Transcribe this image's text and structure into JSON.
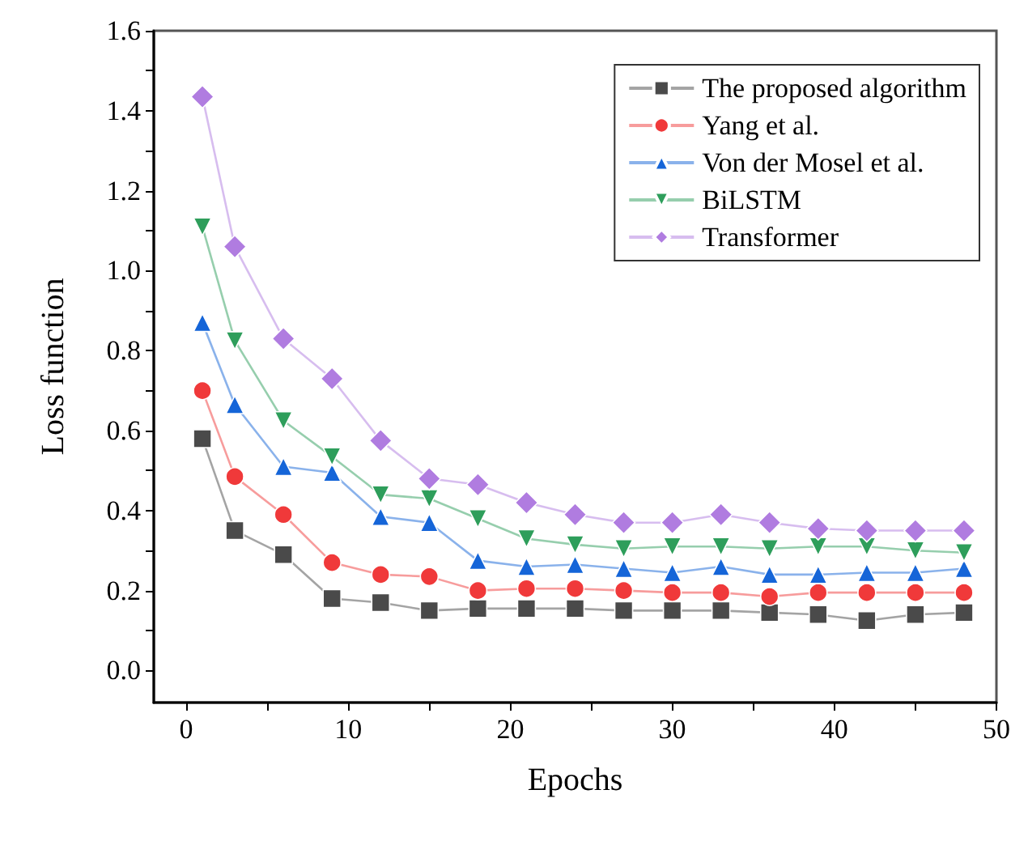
{
  "chart_data": {
    "type": "line",
    "xlabel": "Epochs",
    "ylabel": "Loss function",
    "x": [
      1,
      3,
      6,
      9,
      12,
      15,
      18,
      21,
      24,
      27,
      30,
      33,
      36,
      39,
      42,
      45,
      48
    ],
    "series": [
      {
        "name": "The proposed algorithm",
        "color": "#4a4a4a",
        "marker": "square",
        "values": [
          0.58,
          0.35,
          0.29,
          0.18,
          0.17,
          0.15,
          0.155,
          0.155,
          0.155,
          0.15,
          0.15,
          0.15,
          0.145,
          0.14,
          0.125,
          0.14,
          0.145
        ]
      },
      {
        "name": "Yang et al.",
        "color": "#f0393a",
        "marker": "circle",
        "values": [
          0.7,
          0.485,
          0.39,
          0.27,
          0.24,
          0.235,
          0.2,
          0.205,
          0.205,
          0.2,
          0.195,
          0.195,
          0.185,
          0.195,
          0.195,
          0.195,
          0.195
        ]
      },
      {
        "name": "Von der Mosel et al.",
        "color": "#1565d8",
        "marker": "triangle",
        "values": [
          0.87,
          0.665,
          0.51,
          0.495,
          0.385,
          0.37,
          0.275,
          0.26,
          0.265,
          0.255,
          0.245,
          0.26,
          0.24,
          0.24,
          0.245,
          0.245,
          0.255
        ]
      },
      {
        "name": "BiLSTM",
        "color": "#2e9e5b",
        "marker": "triangle-down",
        "values": [
          1.11,
          0.825,
          0.625,
          0.535,
          0.44,
          0.43,
          0.38,
          0.33,
          0.315,
          0.305,
          0.31,
          0.31,
          0.305,
          0.31,
          0.31,
          0.3,
          0.295
        ]
      },
      {
        "name": "Transformer",
        "color": "#b07ce0",
        "marker": "diamond",
        "values": [
          1.435,
          1.06,
          0.83,
          0.73,
          0.575,
          0.48,
          0.465,
          0.42,
          0.39,
          0.37,
          0.37,
          0.39,
          0.37,
          0.355,
          0.35,
          0.35,
          0.35
        ]
      }
    ],
    "xlim": [
      -2,
      50
    ],
    "xticks": [
      0,
      10,
      20,
      30,
      40,
      50
    ],
    "ylim": [
      -0.08,
      1.6
    ],
    "yticks": [
      {
        "value": 0,
        "label": "0.0"
      },
      0.2,
      0.4,
      0.6,
      0.8,
      {
        "value": 1,
        "label": "1.0"
      },
      1.2,
      1.4,
      1.6
    ],
    "grid": false,
    "legend": "top right",
    "line_style": "solid"
  }
}
